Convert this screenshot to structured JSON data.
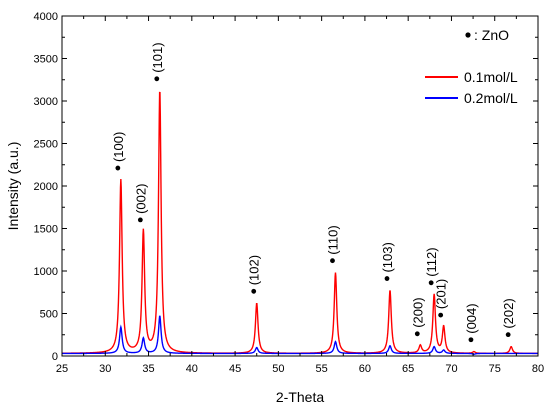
{
  "chart_data": {
    "type": "line",
    "xlabel": "2-Theta",
    "ylabel": "Intensity (a.u.)",
    "xlim": [
      25,
      80
    ],
    "ylim": [
      0,
      4000
    ],
    "x_ticks": [
      25,
      30,
      35,
      40,
      45,
      50,
      55,
      60,
      65,
      70,
      75,
      80
    ],
    "y_ticks": [
      0,
      500,
      1000,
      1500,
      2000,
      2500,
      3000,
      3500,
      4000
    ],
    "grid": false,
    "legend_position": "top-right",
    "marker_legend": "ZnO",
    "marker_legend_prefix": ":",
    "baseline": 30,
    "peak_width": 0.18,
    "series": [
      {
        "name": "0.1mol/L",
        "color": "#ff0000",
        "peaks": [
          {
            "x": 31.8,
            "y": 2070
          },
          {
            "x": 34.4,
            "y": 1460
          },
          {
            "x": 36.3,
            "y": 3120
          },
          {
            "x": 47.5,
            "y": 620
          },
          {
            "x": 56.6,
            "y": 980
          },
          {
            "x": 62.9,
            "y": 770
          },
          {
            "x": 66.4,
            "y": 120
          },
          {
            "x": 68.0,
            "y": 720
          },
          {
            "x": 69.1,
            "y": 340
          },
          {
            "x": 72.6,
            "y": 50
          },
          {
            "x": 76.9,
            "y": 110
          }
        ]
      },
      {
        "name": "0.2mol/L",
        "color": "#0000ff",
        "peaks": [
          {
            "x": 31.8,
            "y": 340
          },
          {
            "x": 34.4,
            "y": 210
          },
          {
            "x": 36.3,
            "y": 470
          },
          {
            "x": 47.5,
            "y": 100
          },
          {
            "x": 56.6,
            "y": 170
          },
          {
            "x": 62.9,
            "y": 120
          },
          {
            "x": 66.4,
            "y": 30
          },
          {
            "x": 68.0,
            "y": 110
          },
          {
            "x": 69.1,
            "y": 70
          },
          {
            "x": 72.6,
            "y": 20
          },
          {
            "x": 76.9,
            "y": 30
          }
        ]
      }
    ],
    "annotations": [
      {
        "text": "(100)",
        "x": 31.8,
        "y": 2070
      },
      {
        "text": "(002)",
        "x": 34.4,
        "y": 1460
      },
      {
        "text": "(101)",
        "x": 36.3,
        "y": 3120
      },
      {
        "text": "(102)",
        "x": 47.5,
        "y": 620
      },
      {
        "text": "(110)",
        "x": 56.6,
        "y": 980
      },
      {
        "text": "(103)",
        "x": 62.9,
        "y": 770
      },
      {
        "text": "(200)",
        "x": 66.4,
        "y": 120
      },
      {
        "text": "(112)",
        "x": 68.0,
        "y": 720
      },
      {
        "text": "(201)",
        "x": 69.1,
        "y": 340
      },
      {
        "text": "(004)",
        "x": 72.6,
        "y": 50
      },
      {
        "text": "(202)",
        "x": 76.9,
        "y": 110
      }
    ]
  }
}
